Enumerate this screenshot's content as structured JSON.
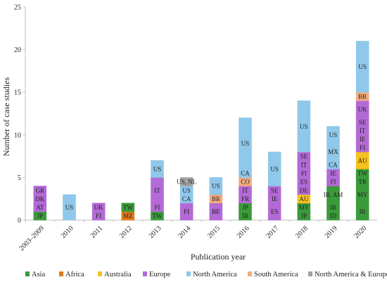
{
  "chart_data": {
    "type": "bar",
    "stacked": true,
    "xlabel": "Publication year",
    "ylabel": "Number of case studies",
    "ylim": [
      0,
      25
    ],
    "yticks": [
      0,
      5,
      10,
      15,
      20,
      25
    ],
    "grid": false,
    "legend_position": "bottom",
    "categories": [
      "2003–2009",
      "2010",
      "2011",
      "2012",
      "2013",
      "2014",
      "2015",
      "2016",
      "2017",
      "2018",
      "2019",
      "2020"
    ],
    "colors": {
      "Asia": "#3a9b3a",
      "Africa": "#e07b1a",
      "Australia": "#f5c11c",
      "Europe": "#b36ad6",
      "North America": "#8fc8ea",
      "South America": "#f2ab7f",
      "North America & Europe": "#a3a3a3"
    },
    "legend": [
      "Asia",
      "Africa",
      "Australia",
      "Europe",
      "North America",
      "South America",
      "North America & Europe"
    ],
    "bars": [
      {
        "category": "2003–2009",
        "segments": [
          {
            "label": "JP",
            "region": "Asia",
            "value": 1
          },
          {
            "label": "AT",
            "region": "Europe",
            "value": 1
          },
          {
            "label": "DK",
            "region": "Europe",
            "value": 1
          },
          {
            "label": "GR",
            "region": "Europe",
            "value": 1
          }
        ]
      },
      {
        "category": "2010",
        "segments": [
          {
            "label": "US",
            "region": "North America",
            "value": 3
          }
        ]
      },
      {
        "category": "2011",
        "segments": [
          {
            "label": "FI",
            "region": "Europe",
            "value": 1
          },
          {
            "label": "UK",
            "region": "Europe",
            "value": 1
          }
        ]
      },
      {
        "category": "2012",
        "segments": [
          {
            "label": "MZ",
            "region": "Africa",
            "value": 1
          },
          {
            "label": "TW",
            "region": "Asia",
            "value": 1
          }
        ]
      },
      {
        "category": "2013",
        "segments": [
          {
            "label": "TW",
            "region": "Asia",
            "value": 1
          },
          {
            "label": "FI",
            "region": "Europe",
            "value": 1
          },
          {
            "label": "IT",
            "region": "Europe",
            "value": 3
          },
          {
            "label": "US",
            "region": "North America",
            "value": 2
          }
        ]
      },
      {
        "category": "2014",
        "segments": [
          {
            "label": "FI",
            "region": "Europe",
            "value": 2
          },
          {
            "label": "CA",
            "region": "North America",
            "value": 1
          },
          {
            "label": "US",
            "region": "North America",
            "value": 1
          },
          {
            "label": "US, NL",
            "region": "North America & Europe",
            "value": 1
          }
        ]
      },
      {
        "category": "2015",
        "segments": [
          {
            "label": "BE",
            "region": "Europe",
            "value": 2
          },
          {
            "label": "BR",
            "region": "South America",
            "value": 1
          },
          {
            "label": "US",
            "region": "North America",
            "value": 2
          }
        ]
      },
      {
        "category": "2016",
        "segments": [
          {
            "label": "IR",
            "region": "Asia",
            "value": 1
          },
          {
            "label": "JP",
            "region": "Asia",
            "value": 1
          },
          {
            "label": "FR",
            "region": "Europe",
            "value": 1
          },
          {
            "label": "IT",
            "region": "Europe",
            "value": 1
          },
          {
            "label": "CO",
            "region": "South America",
            "value": 1
          },
          {
            "label": "CA",
            "region": "North America",
            "value": 1
          },
          {
            "label": "US",
            "region": "North America",
            "value": 6
          }
        ]
      },
      {
        "category": "2017",
        "segments": [
          {
            "label": "ES",
            "region": "Europe",
            "value": 2
          },
          {
            "label": "IE",
            "region": "Europe",
            "value": 1
          },
          {
            "label": "SE",
            "region": "Europe",
            "value": 1
          },
          {
            "label": "US",
            "region": "North America",
            "value": 4
          }
        ]
      },
      {
        "category": "2018",
        "segments": [
          {
            "label": "JP",
            "region": "Asia",
            "value": 1
          },
          {
            "label": "MY",
            "region": "Asia",
            "value": 1
          },
          {
            "label": "AU",
            "region": "Australia",
            "value": 1
          },
          {
            "label": "DE",
            "region": "Europe",
            "value": 1
          },
          {
            "label": "ES",
            "region": "Europe",
            "value": 1
          },
          {
            "label": "FI",
            "region": "Europe",
            "value": 1
          },
          {
            "label": "IT",
            "region": "Europe",
            "value": 1
          },
          {
            "label": "SE",
            "region": "Europe",
            "value": 1
          },
          {
            "label": "US",
            "region": "North America",
            "value": 6
          }
        ]
      },
      {
        "category": "2019",
        "segments": [
          {
            "label": "ID",
            "region": "Asia",
            "value": 1
          },
          {
            "label": "IR",
            "region": "Asia",
            "value": 1
          },
          {
            "label": "IR, AM",
            "region": "Asia",
            "value": 2
          },
          {
            "label": "FI",
            "region": "Europe",
            "value": 1
          },
          {
            "label": "IE",
            "region": "Europe",
            "value": 1
          },
          {
            "label": "CA",
            "region": "North America",
            "value": 1
          },
          {
            "label": "MX",
            "region": "North America",
            "value": 2
          },
          {
            "label": "US",
            "region": "North America",
            "value": 2
          }
        ]
      },
      {
        "category": "2020",
        "segments": [
          {
            "label": "IR",
            "region": "Asia",
            "value": 2
          },
          {
            "label": "MY",
            "region": "Asia",
            "value": 2
          },
          {
            "label": "TR",
            "region": "Asia",
            "value": 1
          },
          {
            "label": "TW",
            "region": "Asia",
            "value": 1
          },
          {
            "label": "AU",
            "region": "Australia",
            "value": 2
          },
          {
            "label": "FI",
            "region": "Europe",
            "value": 1
          },
          {
            "label": "IE",
            "region": "Europe",
            "value": 1
          },
          {
            "label": "IT",
            "region": "Europe",
            "value": 1
          },
          {
            "label": "SE",
            "region": "Europe",
            "value": 1
          },
          {
            "label": "UK",
            "region": "Europe",
            "value": 2
          },
          {
            "label": "BR",
            "region": "South America",
            "value": 1
          },
          {
            "label": "US",
            "region": "North America",
            "value": 6
          }
        ]
      }
    ]
  }
}
